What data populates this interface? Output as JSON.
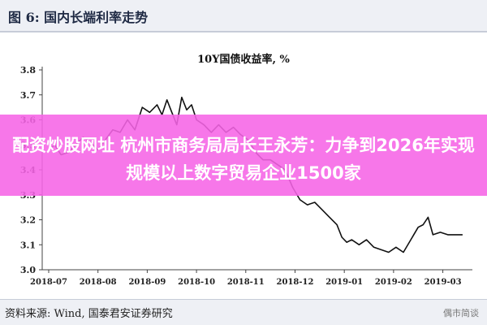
{
  "header": {
    "figure_title": "图 6: 国内长端利率走势"
  },
  "overlay": {
    "headline": "配资炒股网址 杭州市商务局局长王永芳：力争到2026年实现规模以上数字贸易企业1500家"
  },
  "source": {
    "text": "资料来源: Wind, 国泰君安证券研究"
  },
  "watermark": {
    "text": "偶市简谈"
  },
  "colors": {
    "line": "#111111",
    "overlay": "#f664e6",
    "axis": "#444444"
  },
  "chart_data": {
    "type": "line",
    "title": "10Y国债收益率, %",
    "xlabel": "",
    "ylabel": "",
    "categories": [
      "2018-07",
      "2018-08",
      "2018-09",
      "2018-10",
      "2018-11",
      "2018-12",
      "2019-01",
      "2019-02",
      "2019-03"
    ],
    "yticks": [
      "3.0",
      "3.1",
      "3.2",
      "3.3",
      "3.4",
      "3.5",
      "3.6",
      "3.7",
      "3.8"
    ],
    "ylim": [
      3.0,
      3.8
    ],
    "grid": false,
    "legend": "none",
    "series": [
      {
        "name": "",
        "x": [
          0,
          0.12,
          0.25,
          0.4,
          0.55,
          0.7,
          0.85,
          1.0,
          1.15,
          1.3,
          1.45,
          1.6,
          1.75,
          1.9,
          2.05,
          2.2,
          2.3,
          2.4,
          2.5,
          2.6,
          2.7,
          2.8,
          2.9,
          3.0,
          3.15,
          3.3,
          3.45,
          3.6,
          3.75,
          3.9,
          4.05,
          4.2,
          4.35,
          4.5,
          4.65,
          4.8,
          4.95,
          5.1,
          5.25,
          5.4,
          5.55,
          5.7,
          5.85,
          5.95,
          6.05,
          6.15,
          6.3,
          6.45,
          6.6,
          6.75,
          6.9,
          7.05,
          7.2,
          7.35,
          7.5,
          7.6,
          7.7,
          7.8,
          7.95,
          8.1,
          8.25,
          8.4
        ],
        "values": [
          3.48,
          3.5,
          3.46,
          3.47,
          3.5,
          3.53,
          3.51,
          3.48,
          3.52,
          3.56,
          3.55,
          3.6,
          3.56,
          3.65,
          3.63,
          3.66,
          3.62,
          3.68,
          3.63,
          3.58,
          3.69,
          3.64,
          3.66,
          3.6,
          3.58,
          3.55,
          3.58,
          3.55,
          3.57,
          3.54,
          3.52,
          3.47,
          3.44,
          3.44,
          3.42,
          3.4,
          3.33,
          3.28,
          3.26,
          3.27,
          3.24,
          3.21,
          3.18,
          3.13,
          3.11,
          3.12,
          3.1,
          3.12,
          3.09,
          3.08,
          3.07,
          3.09,
          3.07,
          3.12,
          3.17,
          3.18,
          3.21,
          3.14,
          3.15,
          3.14,
          3.14,
          3.14
        ]
      }
    ]
  }
}
